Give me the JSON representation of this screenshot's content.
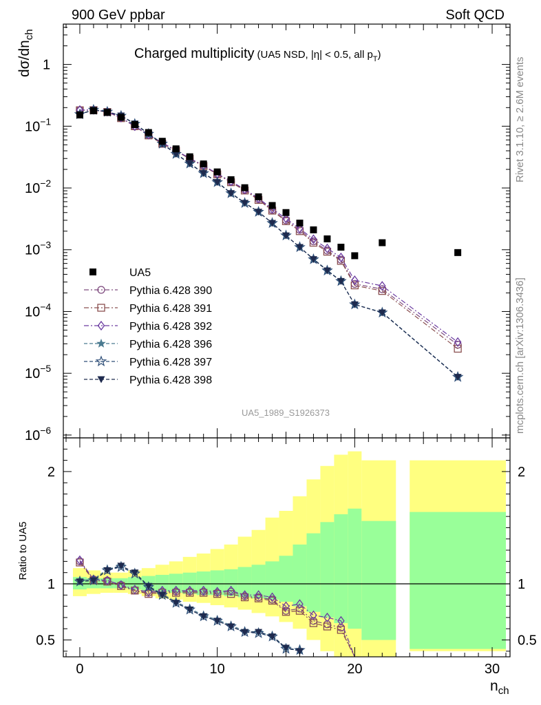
{
  "header": {
    "left": "900 GeV ppbar",
    "right": "Soft QCD",
    "side_top": "Rivet 3.1.10, ≥ 2.6M events",
    "side_bottom": "mcplots.cern.ch [arXiv:1306.3436]"
  },
  "colors": {
    "yellow_band": "#ffff80",
    "green_band": "#99ff99",
    "p390": "#7e4a7e",
    "p391": "#8a4f4f",
    "p392": "#6a3aa0",
    "p396": "#4a7a90",
    "p397": "#2e4e78",
    "p398": "#1e2a4e"
  },
  "chart_data": [
    {
      "type": "scatter",
      "title": "Charged multiplicity",
      "title_sub": "(UA5 NSD, |η| < 0.5, all p",
      "title_sub_subscript": "T",
      "title_sub_close": ")",
      "ylabel": "dσ/dn",
      "ylabel_sub": "ch",
      "yscale": "log",
      "ylim": [
        9e-07,
        4.5
      ],
      "xlim": [
        -1.2,
        31.3
      ],
      "ytick_labels": [
        {
          "value": 1,
          "base": "1",
          "exp": ""
        },
        {
          "value": 0.1,
          "base": "10",
          "exp": "−1"
        },
        {
          "value": 0.01,
          "base": "10",
          "exp": "−2"
        },
        {
          "value": 0.001,
          "base": "10",
          "exp": "−3"
        },
        {
          "value": 0.0001,
          "base": "10",
          "exp": "−4"
        },
        {
          "value": 1e-05,
          "base": "10",
          "exp": "−5"
        },
        {
          "value": 1e-06,
          "base": "10",
          "exp": "−6"
        }
      ],
      "watermark": "UA5_1989_S1926373",
      "legend_position": "center-left",
      "data_series": {
        "name": "UA5",
        "x": [
          0,
          1,
          2,
          3,
          4,
          5,
          6,
          7,
          8,
          9,
          10,
          11,
          12,
          13,
          14,
          15,
          16,
          17,
          18,
          19,
          20,
          22,
          27.5
        ],
        "y": [
          0.152,
          0.178,
          0.167,
          0.139,
          0.106,
          0.079,
          0.057,
          0.043,
          0.032,
          0.0245,
          0.0182,
          0.0136,
          0.0101,
          0.0072,
          0.0052,
          0.004,
          0.0027,
          0.0021,
          0.0015,
          0.0011,
          0.0008,
          0.0013,
          0.0009
        ]
      },
      "series": [
        {
          "name": "Pythia 6.428 390",
          "marker": "circle",
          "dash": "dashdot",
          "color_key": "p390",
          "x": [
            0,
            1,
            2,
            3,
            4,
            5,
            6,
            7,
            8,
            9,
            10,
            11,
            12,
            13,
            14,
            15,
            16,
            17,
            18,
            19,
            20,
            22,
            27.5
          ],
          "y": [
            0.182,
            0.183,
            0.171,
            0.137,
            0.099,
            0.072,
            0.053,
            0.04,
            0.0298,
            0.0229,
            0.0168,
            0.0126,
            0.0093,
            0.0066,
            0.0044,
            0.003,
            0.0021,
            0.00137,
            0.00097,
            0.00069,
            0.00028,
            0.00023,
            2.9e-05
          ]
        },
        {
          "name": "Pythia 6.428 391",
          "marker": "square",
          "dash": "dashdot",
          "color_key": "p391",
          "x": [
            0,
            1,
            2,
            3,
            4,
            5,
            6,
            7,
            8,
            9,
            10,
            11,
            12,
            13,
            14,
            15,
            16,
            17,
            18,
            19,
            20,
            22,
            27.5
          ],
          "y": [
            0.181,
            0.182,
            0.17,
            0.135,
            0.1,
            0.071,
            0.052,
            0.04,
            0.0296,
            0.0227,
            0.0166,
            0.0124,
            0.0091,
            0.0064,
            0.0043,
            0.0029,
            0.002,
            0.0013,
            0.00093,
            0.00066,
            0.000265,
            0.000215,
            2.5e-05
          ]
        },
        {
          "name": "Pythia 6.428 392",
          "marker": "diamond",
          "dash": "dashdot",
          "color_key": "p392",
          "x": [
            0,
            1,
            2,
            3,
            4,
            5,
            6,
            7,
            8,
            9,
            10,
            11,
            12,
            13,
            14,
            15,
            16,
            17,
            18,
            19,
            20,
            22,
            27.5
          ],
          "y": [
            0.183,
            0.184,
            0.172,
            0.138,
            0.1,
            0.073,
            0.054,
            0.0405,
            0.0302,
            0.0232,
            0.017,
            0.0128,
            0.0095,
            0.0068,
            0.0046,
            0.0032,
            0.0022,
            0.00148,
            0.00105,
            0.00075,
            0.00032,
            0.00026,
            3.2e-05
          ]
        },
        {
          "name": "Pythia 6.428 396",
          "marker": "star-filled",
          "dash": "dashed",
          "color_key": "p396",
          "x": [
            0,
            1,
            2,
            3,
            4,
            5,
            6,
            7,
            8,
            9,
            10,
            11,
            12,
            13,
            14,
            15,
            16,
            17,
            18,
            19,
            20,
            22,
            27.5
          ],
          "y": [
            0.157,
            0.185,
            0.172,
            0.148,
            0.11,
            0.076,
            0.053,
            0.036,
            0.025,
            0.0175,
            0.0125,
            0.0083,
            0.0058,
            0.0041,
            0.0027,
            0.0017,
            0.0011,
            0.00071,
            0.00047,
            0.00031,
            0.00013,
            9.7e-05,
            8.8e-06
          ]
        },
        {
          "name": "Pythia 6.428 397",
          "marker": "star-open",
          "dash": "dashed",
          "color_key": "p397",
          "x": [
            0,
            1,
            2,
            3,
            4,
            5,
            6,
            7,
            8,
            9,
            10,
            11,
            12,
            13,
            14,
            15,
            16,
            17,
            18,
            19,
            20,
            22,
            27.5
          ],
          "y": [
            0.156,
            0.184,
            0.171,
            0.147,
            0.109,
            0.075,
            0.052,
            0.0355,
            0.0248,
            0.0173,
            0.0124,
            0.0082,
            0.0057,
            0.0041,
            0.0027,
            0.0017,
            0.0011,
            0.0007,
            0.00046,
            0.00031,
            0.00013,
            9.6e-05,
            8.7e-06
          ]
        },
        {
          "name": "Pythia 6.428 398",
          "marker": "triangle-down",
          "dash": "dashed",
          "color_key": "p398",
          "x": [
            0,
            1,
            2,
            3,
            4,
            5,
            6,
            7,
            8,
            9,
            10,
            11,
            12,
            13,
            14,
            15,
            16,
            17,
            18,
            19,
            20,
            22,
            27.5
          ],
          "y": [
            0.156,
            0.183,
            0.171,
            0.148,
            0.11,
            0.075,
            0.052,
            0.0355,
            0.0248,
            0.0173,
            0.0124,
            0.0082,
            0.0057,
            0.0041,
            0.0027,
            0.0017,
            0.0011,
            0.0007,
            0.00046,
            0.00031,
            0.00013,
            9.6e-05,
            8.7e-06
          ]
        }
      ]
    },
    {
      "type": "scatter",
      "title": "",
      "ylabel": "Ratio to UA5",
      "xlabel": "n",
      "xlabel_sub": "ch",
      "ylim": [
        0.35,
        2.3
      ],
      "xlim": [
        -1.2,
        31.3
      ],
      "xticks": [
        0,
        10,
        20,
        30
      ],
      "yticks": [
        0.5,
        1,
        2
      ],
      "reference_line": 1,
      "bands": {
        "x_edges": [
          [
            -0.5,
            0.5
          ],
          [
            0.5,
            1.5
          ],
          [
            1.5,
            2.5
          ],
          [
            2.5,
            3.5
          ],
          [
            3.5,
            4.5
          ],
          [
            4.5,
            5.5
          ],
          [
            5.5,
            6.5
          ],
          [
            6.5,
            7.5
          ],
          [
            7.5,
            8.5
          ],
          [
            8.5,
            9.5
          ],
          [
            9.5,
            10.5
          ],
          [
            10.5,
            11.5
          ],
          [
            11.5,
            12.5
          ],
          [
            12.5,
            13.5
          ],
          [
            13.5,
            14.5
          ],
          [
            14.5,
            15.5
          ],
          [
            15.5,
            16.5
          ],
          [
            16.5,
            17.5
          ],
          [
            17.5,
            18.5
          ],
          [
            18.5,
            19.5
          ],
          [
            19.5,
            20.5
          ],
          [
            20.5,
            23
          ],
          [
            24,
            31
          ]
        ],
        "yellow_low": [
          0.89,
          0.91,
          0.92,
          0.92,
          0.91,
          0.89,
          0.87,
          0.86,
          0.84,
          0.83,
          0.81,
          0.79,
          0.77,
          0.74,
          0.71,
          0.66,
          0.6,
          0.5,
          0.4,
          0.3,
          0.2,
          0.1,
          0.4
        ],
        "yellow_high": [
          1.14,
          1.12,
          1.1,
          1.1,
          1.12,
          1.14,
          1.17,
          1.2,
          1.24,
          1.27,
          1.31,
          1.35,
          1.42,
          1.48,
          1.59,
          1.65,
          1.78,
          1.93,
          2.05,
          2.15,
          2.18,
          2.1,
          2.1
        ],
        "green_low": [
          0.95,
          0.96,
          0.96,
          0.96,
          0.95,
          0.94,
          0.93,
          0.92,
          0.91,
          0.9,
          0.9,
          0.89,
          0.88,
          0.87,
          0.86,
          0.84,
          0.8,
          0.75,
          0.7,
          0.65,
          0.6,
          0.5,
          0.42
        ],
        "green_high": [
          1.06,
          1.05,
          1.05,
          1.05,
          1.06,
          1.07,
          1.08,
          1.09,
          1.1,
          1.11,
          1.12,
          1.13,
          1.15,
          1.17,
          1.2,
          1.25,
          1.35,
          1.45,
          1.55,
          1.62,
          1.67,
          1.56,
          1.64
        ]
      },
      "series": [
        {
          "name": "Pythia 6.428 390",
          "color_key": "p390",
          "marker": "circle",
          "dash": "dashdot",
          "x": [
            0,
            1,
            2,
            3,
            4,
            5,
            6,
            7,
            8,
            9,
            10,
            11,
            12,
            13,
            14,
            15,
            16,
            17,
            18,
            19,
            20
          ],
          "y": [
            1.2,
            1.04,
            1.03,
            0.99,
            0.94,
            0.92,
            0.93,
            0.93,
            0.93,
            0.93,
            0.92,
            0.93,
            0.89,
            0.88,
            0.86,
            0.76,
            0.78,
            0.67,
            0.64,
            0.61,
            0.3
          ]
        },
        {
          "name": "Pythia 6.428 391",
          "color_key": "p391",
          "marker": "square",
          "dash": "dashdot",
          "x": [
            0,
            1,
            2,
            3,
            4,
            5,
            6,
            7,
            8,
            9,
            10,
            11,
            12,
            13,
            14,
            15,
            16,
            17,
            18,
            19,
            20
          ],
          "y": [
            1.19,
            1.03,
            1.02,
            0.98,
            0.94,
            0.91,
            0.92,
            0.92,
            0.92,
            0.92,
            0.91,
            0.91,
            0.88,
            0.87,
            0.85,
            0.75,
            0.76,
            0.65,
            0.62,
            0.59,
            0.3
          ]
        },
        {
          "name": "Pythia 6.428 392",
          "color_key": "p392",
          "marker": "diamond",
          "dash": "dashdot",
          "x": [
            0,
            1,
            2,
            3,
            4,
            5,
            6,
            7,
            8,
            9,
            10,
            11,
            12,
            13,
            14,
            15,
            16,
            17,
            18,
            19,
            20
          ],
          "y": [
            1.21,
            1.04,
            1.03,
            0.99,
            0.95,
            0.93,
            0.94,
            0.94,
            0.94,
            0.94,
            0.93,
            0.94,
            0.9,
            0.9,
            0.88,
            0.8,
            0.82,
            0.72,
            0.7,
            0.67,
            0.33
          ]
        },
        {
          "name": "Pythia 6.428 396",
          "color_key": "p396",
          "marker": "star-filled",
          "dash": "dashed",
          "x": [
            0,
            1,
            2,
            3,
            4,
            5,
            6,
            7,
            8,
            9,
            10,
            11,
            12,
            13,
            14,
            15,
            16
          ],
          "y": [
            1.03,
            1.04,
            1.13,
            1.16,
            1.1,
            0.98,
            0.91,
            0.84,
            0.78,
            0.72,
            0.68,
            0.63,
            0.58,
            0.57,
            0.54,
            0.43,
            0.41
          ]
        },
        {
          "name": "Pythia 6.428 397",
          "color_key": "p397",
          "marker": "star-open",
          "dash": "dashed",
          "x": [
            0,
            1,
            2,
            3,
            4,
            5,
            6,
            7,
            8,
            9,
            10,
            11,
            12,
            13,
            14,
            15,
            16
          ],
          "y": [
            1.02,
            1.03,
            1.12,
            1.15,
            1.09,
            0.97,
            0.9,
            0.83,
            0.77,
            0.71,
            0.67,
            0.62,
            0.57,
            0.56,
            0.53,
            0.42,
            0.41
          ]
        },
        {
          "name": "Pythia 6.428 398",
          "color_key": "p398",
          "marker": "triangle-down",
          "dash": "dashed",
          "x": [
            0,
            1,
            2,
            3,
            4,
            5,
            6,
            7,
            8,
            9,
            10,
            11,
            12,
            13,
            14,
            15,
            16
          ],
          "y": [
            1.02,
            1.03,
            1.12,
            1.16,
            1.1,
            0.98,
            0.9,
            0.83,
            0.77,
            0.71,
            0.67,
            0.62,
            0.57,
            0.57,
            0.53,
            0.43,
            0.4
          ]
        }
      ]
    }
  ]
}
